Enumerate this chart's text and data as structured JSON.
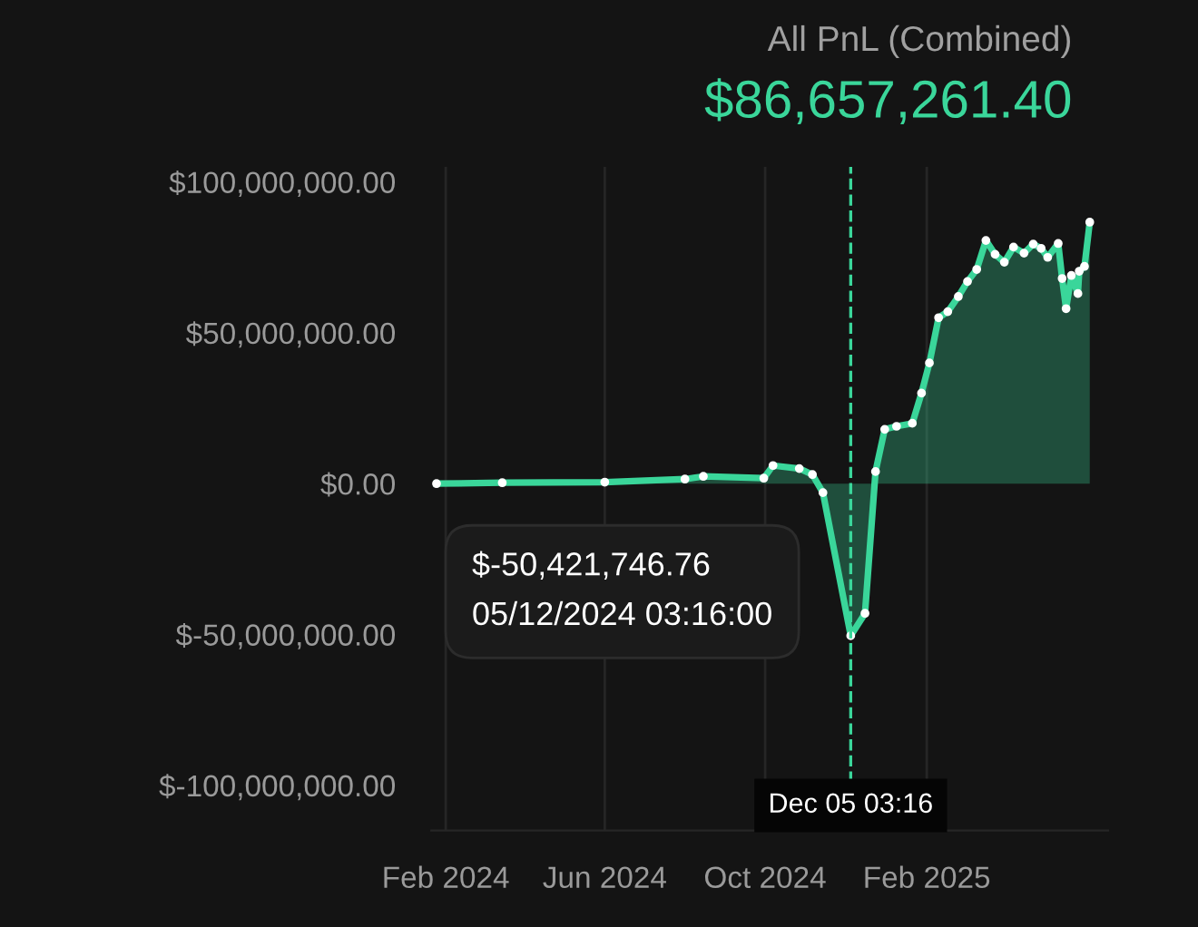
{
  "chart_data": {
    "type": "area",
    "title": "All PnL (Combined)",
    "subtitle": "$86,657,261.40",
    "x": [
      "2024-01-25",
      "2024-03-15",
      "2024-06-01",
      "2024-08-01",
      "2024-08-15",
      "2024-09-30",
      "2024-10-07",
      "2024-10-27",
      "2024-11-06",
      "2024-11-14",
      "2024-12-05T03:16",
      "2024-12-16",
      "2024-12-24",
      "2024-12-31",
      "2025-01-09",
      "2025-01-21",
      "2025-01-28",
      "2025-02-03",
      "2025-02-10",
      "2025-02-17",
      "2025-02-25",
      "2025-03-04",
      "2025-03-11",
      "2025-03-18",
      "2025-03-25",
      "2025-04-01",
      "2025-04-08",
      "2025-04-16",
      "2025-04-23",
      "2025-04-29",
      "2025-05-04",
      "2025-05-12",
      "2025-05-15",
      "2025-05-18",
      "2025-05-22",
      "2025-05-27",
      "2025-05-28",
      "2025-06-01",
      "2025-06-05"
    ],
    "series": [
      {
        "color": "#3ad69a",
        "values": [
          0,
          300000,
          500000,
          1500000,
          2400000,
          1800000,
          6000000,
          5000000,
          3000000,
          -3000000,
          -50421746.76,
          -43000000,
          4000000,
          18000000,
          19000000,
          20000000,
          30000000,
          40000000,
          55000000,
          57000000,
          62000000,
          67000000,
          71000000,
          80600000,
          76000000,
          73400000,
          78400000,
          76400000,
          79400000,
          78000000,
          75000000,
          79600000,
          68000000,
          58000000,
          69000000,
          63000000,
          70400000,
          72000000,
          86657261.4
        ]
      }
    ],
    "xlim": [
      "2024-01-21",
      "2025-06-19"
    ],
    "xticks": [
      {
        "value": "2024-02-01",
        "label": "Feb 2024"
      },
      {
        "value": "2024-06-01",
        "label": "Jun 2024"
      },
      {
        "value": "2024-10-01",
        "label": "Oct 2024"
      },
      {
        "value": "2025-02-01",
        "label": "Feb 2025"
      }
    ],
    "ylim": [
      -115000000,
      105000000
    ],
    "yticks": [
      {
        "value": 100000000,
        "label": "$100,000,000.00"
      },
      {
        "value": 50000000,
        "label": "$50,000,000.00"
      },
      {
        "value": 0,
        "label": "$0.00"
      },
      {
        "value": -50000000,
        "label": "$-50,000,000.00"
      },
      {
        "value": -100000000,
        "label": "$-100,000,000.00"
      }
    ],
    "ref_lines": [
      {
        "axis": "x",
        "value": "2024-12-05T03:16",
        "label": "Dec 05 03:16",
        "color": "#3ad69a",
        "line_style": "dashed"
      }
    ],
    "annotations": [
      "$-50,421,746.76\n05/12/2024 03:16:00"
    ],
    "grid": "x",
    "marker": "circle",
    "line_style": "solid"
  }
}
